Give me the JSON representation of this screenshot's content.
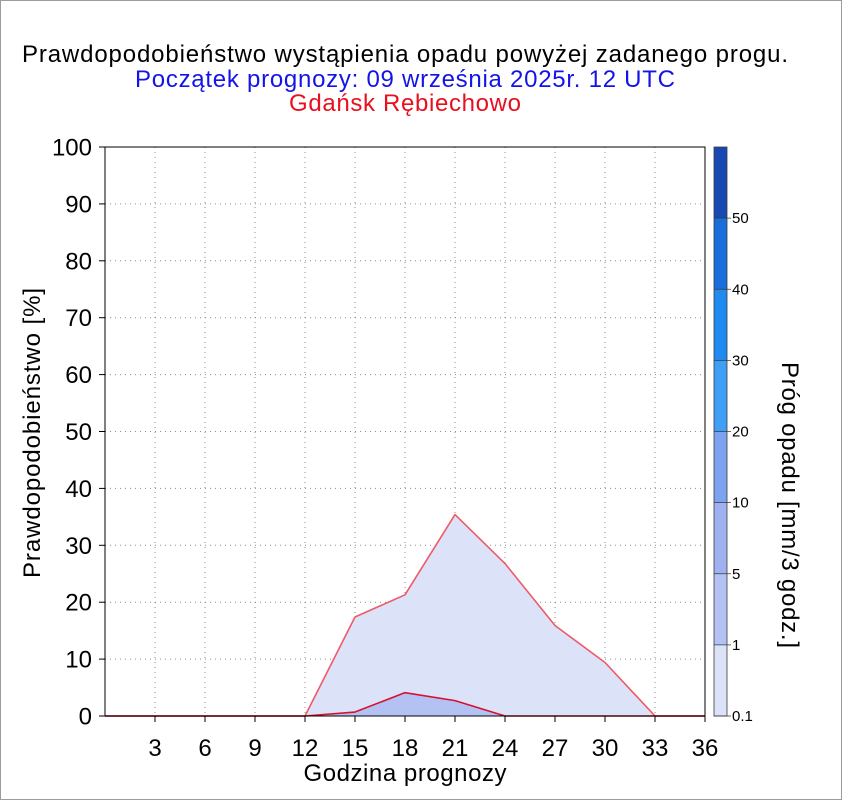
{
  "colors": {
    "title": "#000000",
    "subtitle": "#1414e8",
    "location": "#e8101e"
  },
  "chart_data": {
    "type": "area",
    "title": "Prawdopodobieństwo wystąpienia opadu powyżej zadanego progu.",
    "subtitle": "Początek prognozy: 09 września 2025r. 12 UTC",
    "location": "Gdańsk Rębiechowo",
    "xlabel": "Godzina prognozy",
    "ylabel": "Prawdopodobieństwo [%]",
    "xlim": [
      0,
      36
    ],
    "ylim": [
      0,
      100
    ],
    "xticks": [
      3,
      6,
      9,
      12,
      15,
      18,
      21,
      24,
      27,
      30,
      33,
      36
    ],
    "yticks": [
      0,
      10,
      20,
      30,
      40,
      50,
      60,
      70,
      80,
      90,
      100
    ],
    "grid": true,
    "x": [
      0,
      3,
      6,
      9,
      12,
      15,
      18,
      21,
      24,
      27,
      30,
      33,
      36
    ],
    "series": [
      {
        "threshold": 0.1,
        "values": [
          0,
          0,
          0,
          0,
          0,
          17.4,
          21.3,
          35.4,
          26.8,
          15.9,
          9.4,
          0,
          0
        ],
        "line_color": "#ee5a66"
      },
      {
        "threshold": 1,
        "values": [
          0,
          0,
          0,
          0,
          0,
          0.7,
          4.1,
          2.7,
          0,
          0,
          0,
          0,
          0
        ],
        "line_color": "#d6122e"
      }
    ],
    "colorbar": {
      "position": "right",
      "label": "Próg opadu [mm/3 godz.]",
      "levels": [
        0.1,
        1,
        5,
        10,
        20,
        30,
        40,
        50
      ],
      "colors": [
        "#dce2f8",
        "#b4c2f3",
        "#9fb2ef",
        "#7da2ee",
        "#3f9ef5",
        "#1f8aef",
        "#1a6edb",
        "#1848b2"
      ]
    }
  }
}
